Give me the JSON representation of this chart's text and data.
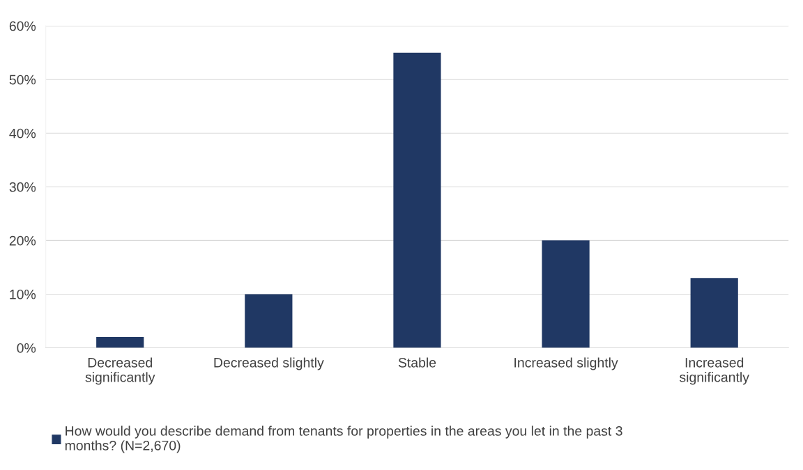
{
  "chart_data": {
    "type": "bar",
    "categories": [
      "Decreased significantly",
      "Decreased slightly",
      "Stable",
      "Increased slightly",
      "Increased significantly"
    ],
    "series": [
      {
        "name": "How would you describe demand from tenants for properties in the areas you let in the past 3 months? (N=2,670)",
        "color": "#203864",
        "values": [
          2,
          10,
          55,
          20,
          13
        ]
      }
    ],
    "ylim": [
      0,
      60
    ],
    "yticks": [
      {
        "value": 0,
        "label": "0%"
      },
      {
        "value": 10,
        "label": "10%"
      },
      {
        "value": 20,
        "label": "20%"
      },
      {
        "value": 30,
        "label": "30%"
      },
      {
        "value": 40,
        "label": "40%"
      },
      {
        "value": 50,
        "label": "50%"
      },
      {
        "value": 60,
        "label": "60%"
      }
    ],
    "grid": "y",
    "legend": "bottom"
  }
}
